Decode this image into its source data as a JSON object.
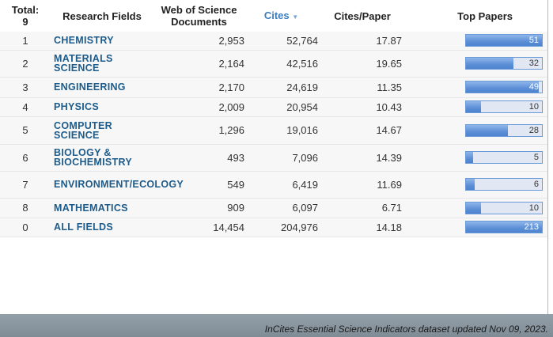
{
  "header": {
    "total_label": "Total:",
    "total_value": "9",
    "field": "Research Fields",
    "docs": "Web of Science Documents",
    "cites": "Cites",
    "sort_icon": "caret-down-icon",
    "cpp": "Cites/Paper",
    "top": "Top Papers"
  },
  "colors": {
    "accent": "#3a7ebf",
    "field_link": "#1d5b8a",
    "bar_fill": "#5c8fd6",
    "bar_track": "#e2e8f3"
  },
  "rows": [
    {
      "rank": "1",
      "field": "CHEMISTRY",
      "docs": "2,953",
      "cites": "52,764",
      "cpp": "17.87",
      "top": "51",
      "fill": 1.0
    },
    {
      "rank": "2",
      "field": "MATERIALS SCIENCE",
      "docs": "2,164",
      "cites": "42,516",
      "cpp": "19.65",
      "top": "32",
      "fill": 0.627
    },
    {
      "rank": "3",
      "field": "ENGINEERING",
      "docs": "2,170",
      "cites": "24,619",
      "cpp": "11.35",
      "top": "49",
      "fill": 0.961
    },
    {
      "rank": "4",
      "field": "PHYSICS",
      "docs": "2,009",
      "cites": "20,954",
      "cpp": "10.43",
      "top": "10",
      "fill": 0.196
    },
    {
      "rank": "5",
      "field": "COMPUTER SCIENCE",
      "docs": "1,296",
      "cites": "19,016",
      "cpp": "14.67",
      "top": "28",
      "fill": 0.549
    },
    {
      "rank": "6",
      "field": "BIOLOGY & BIOCHEMISTRY",
      "docs": "493",
      "cites": "7,096",
      "cpp": "14.39",
      "top": "5",
      "fill": 0.098
    },
    {
      "rank": "7",
      "field": "ENVIRONMENT/ECOLOGY",
      "docs": "549",
      "cites": "6,419",
      "cpp": "11.69",
      "top": "6",
      "fill": 0.118
    },
    {
      "rank": "8",
      "field": "MATHEMATICS",
      "docs": "909",
      "cites": "6,097",
      "cpp": "6.71",
      "top": "10",
      "fill": 0.196
    },
    {
      "rank": "0",
      "field": "ALL FIELDS",
      "docs": "14,454",
      "cites": "204,976",
      "cpp": "14.18",
      "top": "213",
      "fill": 1.0
    }
  ],
  "footer": "InCites Essential Science Indicators dataset updated Nov 09, 2023."
}
